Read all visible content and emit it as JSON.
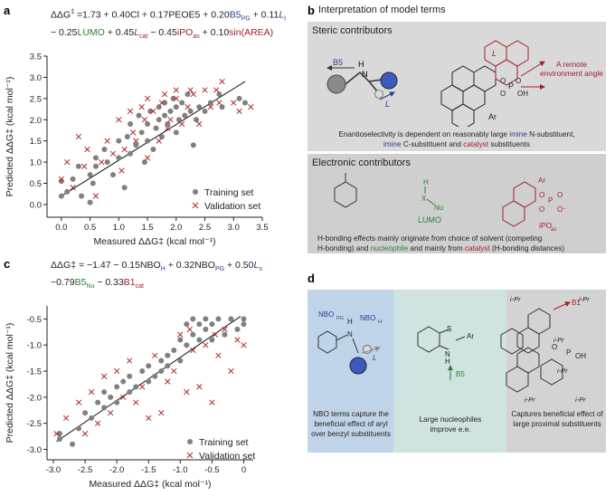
{
  "panels": {
    "a": {
      "letter": "a",
      "eq_parts": [
        "ΔΔG",
        "‡",
        " =1.73 + 0.40Cl + 0.17PEOE5 + 0.20",
        "B5",
        "PG",
        " + 0.11",
        "L",
        "I",
        "− 0.25",
        "LUMO",
        " + 0.45",
        "L",
        "cat",
        " − 0.45",
        "iPO",
        "as",
        " + 0.10",
        "sin(AREA)"
      ],
      "xlabel": "Measured ΔΔG‡ (kcal mol⁻¹)",
      "ylabel": "Predicted ΔΔG‡ (kcal mol⁻¹)",
      "legend_train": "Training set",
      "legend_valid": "Validation set"
    },
    "b": {
      "letter": "b",
      "title": "Interpretation of model terms",
      "steric_title": "Steric contributors",
      "steric_caption_1": "Enantioselectivity is dependent on reasonably large ",
      "steric_caption_imine1": "imine",
      "steric_caption_2": " N-substituent,",
      "steric_caption_imine2": "imine",
      "steric_caption_3": " C-substituent and ",
      "steric_caption_cat": "catalyst",
      "steric_caption_4": " substituents",
      "remote_label": "A remote environment angle",
      "b5_label": "B5",
      "l_label": "L",
      "ar_label": "Ar",
      "electronic_title": "Electronic contributors",
      "lumo_label": "LUMO",
      "nu_label": "Nu",
      "ipo_label": "iPO",
      "ipo_sub": "as",
      "electronic_caption_1": "H-bonding effects mainly originate from choice of solvent (competing",
      "electronic_caption_2a": "H-bonding) and ",
      "electronic_caption_nuc": "nucleophile",
      "electronic_caption_2b": " and mainly from ",
      "electronic_caption_cat": "catalyst",
      "electronic_caption_2c": " (H-bonding distances)"
    },
    "c": {
      "letter": "c",
      "eq_line1": "ΔΔG‡ = −1.47 − 0.15NBO",
      "eq_line1_sub": "H",
      "eq_line1_b": " + 0.32NBO",
      "eq_line1_sub2": "PG",
      "eq_line1_c": " + 0.50",
      "eq_line1_l": "L",
      "eq_line1_lsub": "s",
      "eq_line2_a": "−0.79",
      "eq_line2_b5": "B5",
      "eq_line2_nu": "Nu",
      "eq_line2_c": " − 0.33",
      "eq_line2_b1": "B1",
      "eq_line2_cat": "cat",
      "xlabel": "Measured ΔΔG‡ (kcal mol⁻¹)",
      "ylabel": "Predicted ΔΔG‡ (kcal mol⁻¹)",
      "legend_train": "Training set",
      "legend_valid": "Validation set"
    },
    "d": {
      "letter": "d",
      "col1_caption": "NBO terms capture the beneficial effect of aryl over benzyl substituents",
      "col2_caption": "Large nucleophiles improve e.e.",
      "col3_caption": "Captures beneficial effect of large proximal substituents",
      "nbo_pg": "NBO",
      "nbo_pg_sub": "PG",
      "nbo_h": "NBO",
      "nbo_h_sub": "H",
      "l_label": "L",
      "b5_label": "B5",
      "ar_label": "Ar",
      "b1_label": "B1",
      "ipr": "i-Pr",
      "oh": "OH",
      "o": "O",
      "p": "P"
    }
  },
  "colors": {
    "train": "#808080",
    "valid": "#b22a2a",
    "blue": "#2a3b8f",
    "green": "#2e7d32",
    "red": "#a31f2a",
    "gray_box": "#d9d9d9",
    "d_blue": "#bfd4e8",
    "d_teal": "#cfe3e0",
    "d_gray": "#d3d3d3"
  },
  "chart_data": [
    {
      "type": "scatter",
      "panel": "a",
      "xlabel": "Measured ΔΔG‡ (kcal mol⁻¹)",
      "ylabel": "Predicted ΔΔG‡ (kcal mol⁻¹)",
      "xlim": [
        -0.25,
        3.5
      ],
      "ylim": [
        -0.3,
        3.5
      ],
      "xticks": [
        0,
        0.5,
        1.0,
        1.5,
        2.0,
        2.5,
        3.0,
        3.5
      ],
      "yticks": [
        0,
        0.5,
        1.0,
        1.5,
        2.0,
        2.5,
        3.0,
        3.5
      ],
      "fit_line": [
        [
          0,
          0.2
        ],
        [
          3.2,
          2.9
        ]
      ],
      "series": [
        {
          "name": "Training set",
          "marker": "circle",
          "points": [
            [
              0,
              0.2
            ],
            [
              0,
              0.55
            ],
            [
              0.1,
              0.3
            ],
            [
              0.2,
              0.6
            ],
            [
              0.3,
              0.9
            ],
            [
              0.35,
              0.2
            ],
            [
              0.5,
              0.05
            ],
            [
              0.5,
              0.7
            ],
            [
              0.55,
              0.5
            ],
            [
              0.6,
              1.1
            ],
            [
              0.6,
              0.9
            ],
            [
              0.75,
              1.3
            ],
            [
              0.8,
              1.0
            ],
            [
              0.9,
              0.7
            ],
            [
              1.0,
              1.1
            ],
            [
              1.0,
              1.5
            ],
            [
              1.1,
              0.4
            ],
            [
              1.15,
              1.6
            ],
            [
              1.2,
              1.2
            ],
            [
              1.2,
              1.9
            ],
            [
              1.3,
              1.4
            ],
            [
              1.35,
              2.1
            ],
            [
              1.4,
              1.7
            ],
            [
              1.45,
              1.0
            ],
            [
              1.5,
              1.5
            ],
            [
              1.5,
              1.9
            ],
            [
              1.55,
              2.2
            ],
            [
              1.6,
              1.3
            ],
            [
              1.65,
              1.8
            ],
            [
              1.7,
              2.3
            ],
            [
              1.7,
              2.0
            ],
            [
              1.75,
              1.6
            ],
            [
              1.8,
              2.1
            ],
            [
              1.8,
              2.4
            ],
            [
              1.85,
              1.9
            ],
            [
              1.9,
              2.2
            ],
            [
              1.95,
              2.5
            ],
            [
              2.0,
              1.7
            ],
            [
              2.0,
              2.3
            ],
            [
              2.05,
              2.0
            ],
            [
              2.1,
              2.4
            ],
            [
              2.15,
              2.1
            ],
            [
              2.2,
              2.6
            ],
            [
              2.25,
              2.2
            ],
            [
              2.3,
              1.4
            ],
            [
              2.35,
              2.0
            ],
            [
              2.4,
              2.3
            ],
            [
              2.5,
              2.2
            ],
            [
              2.6,
              2.4
            ],
            [
              2.75,
              2.6
            ],
            [
              2.8,
              2.3
            ],
            [
              3.1,
              2.5
            ],
            [
              3.2,
              2.4
            ]
          ]
        },
        {
          "name": "Validation set",
          "marker": "x",
          "points": [
            [
              0,
              0.6
            ],
            [
              0.1,
              1.0
            ],
            [
              0.2,
              0.4
            ],
            [
              0.3,
              1.6
            ],
            [
              0.4,
              0.9
            ],
            [
              0.45,
              1.3
            ],
            [
              0.6,
              0.2
            ],
            [
              0.7,
              1.0
            ],
            [
              0.8,
              1.5
            ],
            [
              0.9,
              1.2
            ],
            [
              1.0,
              2.0
            ],
            [
              1.05,
              0.8
            ],
            [
              1.1,
              1.3
            ],
            [
              1.2,
              2.2
            ],
            [
              1.25,
              1.7
            ],
            [
              1.3,
              1.5
            ],
            [
              1.4,
              2.3
            ],
            [
              1.45,
              2.0
            ],
            [
              1.5,
              1.1
            ],
            [
              1.5,
              2.5
            ],
            [
              1.6,
              2.2
            ],
            [
              1.7,
              1.5
            ],
            [
              1.75,
              2.4
            ],
            [
              1.8,
              2.6
            ],
            [
              1.85,
              1.8
            ],
            [
              1.9,
              2.0
            ],
            [
              2.0,
              2.5
            ],
            [
              2.0,
              2.7
            ],
            [
              2.1,
              1.9
            ],
            [
              2.2,
              2.3
            ],
            [
              2.25,
              2.7
            ],
            [
              2.3,
              2.6
            ],
            [
              2.4,
              1.9
            ],
            [
              2.5,
              2.7
            ],
            [
              2.6,
              2.3
            ],
            [
              2.7,
              2.7
            ],
            [
              2.75,
              2.4
            ],
            [
              2.8,
              2.9
            ],
            [
              3.0,
              2.4
            ],
            [
              3.1,
              2.2
            ],
            [
              3.3,
              2.3
            ]
          ]
        }
      ]
    },
    {
      "type": "scatter",
      "panel": "c",
      "xlabel": "Measured ΔΔG‡ (kcal mol⁻¹)",
      "ylabel": "Predicted ΔΔG‡ (kcal mol⁻¹)",
      "xlim": [
        -3.1,
        0.15
      ],
      "ylim": [
        -3.2,
        -0.25
      ],
      "xticks": [
        -3.0,
        -2.5,
        -2.0,
        -1.5,
        -1.0,
        -0.5,
        0
      ],
      "yticks": [
        -3.0,
        -2.5,
        -2.0,
        -1.5,
        -1.0,
        -0.5
      ],
      "fit_line": [
        [
          -2.95,
          -2.85
        ],
        [
          -0.05,
          -0.45
        ]
      ],
      "series": [
        {
          "name": "Training set",
          "marker": "circle",
          "points": [
            [
              -2.9,
              -2.8
            ],
            [
              -2.9,
              -2.7
            ],
            [
              -2.7,
              -2.9
            ],
            [
              -2.6,
              -2.6
            ],
            [
              -2.5,
              -2.3
            ],
            [
              -2.4,
              -2.4
            ],
            [
              -2.3,
              -2.1
            ],
            [
              -2.2,
              -2.2
            ],
            [
              -2.2,
              -1.9
            ],
            [
              -2.1,
              -2.0
            ],
            [
              -2.0,
              -1.8
            ],
            [
              -2.0,
              -2.1
            ],
            [
              -1.9,
              -1.7
            ],
            [
              -1.8,
              -1.9
            ],
            [
              -1.8,
              -1.6
            ],
            [
              -1.7,
              -1.8
            ],
            [
              -1.6,
              -1.5
            ],
            [
              -1.5,
              -1.4
            ],
            [
              -1.5,
              -1.7
            ],
            [
              -1.4,
              -1.6
            ],
            [
              -1.3,
              -1.3
            ],
            [
              -1.3,
              -1.5
            ],
            [
              -1.2,
              -1.2
            ],
            [
              -1.2,
              -1.4
            ],
            [
              -1.1,
              -1.1
            ],
            [
              -1.0,
              -1.3
            ],
            [
              -1.0,
              -0.9
            ],
            [
              -0.9,
              -1.0
            ],
            [
              -0.9,
              -0.6
            ],
            [
              -0.8,
              -0.5
            ],
            [
              -0.8,
              -0.8
            ],
            [
              -0.7,
              -0.6
            ],
            [
              -0.7,
              -0.9
            ],
            [
              -0.6,
              -0.5
            ],
            [
              -0.6,
              -0.7
            ],
            [
              -0.5,
              -0.9
            ],
            [
              -0.5,
              -0.6
            ],
            [
              -0.4,
              -0.5
            ],
            [
              -0.3,
              -0.8
            ],
            [
              -0.2,
              -0.5
            ],
            [
              -0.1,
              -0.7
            ],
            [
              0,
              -0.5
            ],
            [
              0,
              -0.6
            ]
          ]
        },
        {
          "name": "Validation set",
          "marker": "x",
          "points": [
            [
              -2.95,
              -2.7
            ],
            [
              -2.8,
              -2.4
            ],
            [
              -2.6,
              -2.1
            ],
            [
              -2.5,
              -2.7
            ],
            [
              -2.4,
              -1.9
            ],
            [
              -2.3,
              -2.5
            ],
            [
              -2.2,
              -1.6
            ],
            [
              -2.1,
              -2.3
            ],
            [
              -2.0,
              -1.5
            ],
            [
              -1.9,
              -2.0
            ],
            [
              -1.8,
              -1.3
            ],
            [
              -1.7,
              -2.1
            ],
            [
              -1.6,
              -1.8
            ],
            [
              -1.5,
              -2.4
            ],
            [
              -1.4,
              -1.2
            ],
            [
              -1.3,
              -2.3
            ],
            [
              -1.2,
              -1.7
            ],
            [
              -1.1,
              -1.5
            ],
            [
              -1.0,
              -0.8
            ],
            [
              -0.9,
              -1.9
            ],
            [
              -0.85,
              -0.7
            ],
            [
              -0.8,
              -1.1
            ],
            [
              -0.7,
              -1.8
            ],
            [
              -0.6,
              -1.0
            ],
            [
              -0.5,
              -2.1
            ],
            [
              -0.45,
              -0.8
            ],
            [
              -0.4,
              -1.2
            ],
            [
              -0.3,
              -0.7
            ],
            [
              -0.2,
              -1.5
            ],
            [
              -0.1,
              -0.9
            ],
            [
              0,
              -1.0
            ]
          ]
        }
      ]
    }
  ]
}
